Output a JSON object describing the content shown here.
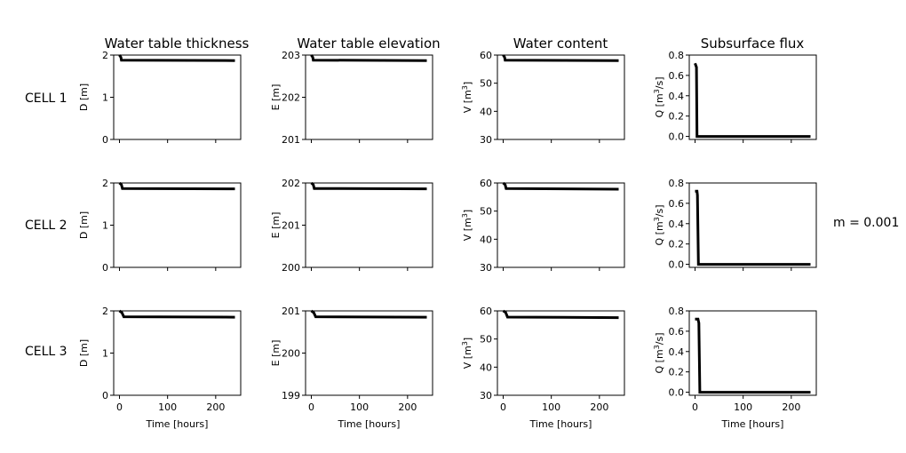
{
  "annotation": "m = 0.001",
  "column_titles": [
    "Water table thickness",
    "Water table elevation",
    "Water content",
    "Subsurface flux"
  ],
  "row_labels": [
    "CELL 1",
    "CELL 2",
    "CELL 3"
  ],
  "x_axis_label": "Time [hours]",
  "line_color": "#000000",
  "chart_data": [
    {
      "type": "line",
      "row": 0,
      "col": 0,
      "ylabel": "D [m]",
      "xlim": [
        -12,
        252
      ],
      "xticks": [
        0,
        100,
        200
      ],
      "ylim": [
        0,
        2
      ],
      "yticks": [
        0,
        1,
        2
      ],
      "ytick_labels": [
        "0",
        "1",
        "2"
      ],
      "show_xtick_labels": false,
      "xlabel": "",
      "series": [
        {
          "x": [
            0,
            3,
            4,
            240
          ],
          "y": [
            2.0,
            1.95,
            1.88,
            1.87
          ]
        }
      ]
    },
    {
      "type": "line",
      "row": 0,
      "col": 1,
      "ylabel": "E [m]",
      "xlim": [
        -12,
        252
      ],
      "xticks": [
        0,
        100,
        200
      ],
      "ylim": [
        201,
        203
      ],
      "yticks": [
        201,
        202,
        203
      ],
      "ytick_labels": [
        "201",
        "202",
        "203"
      ],
      "show_xtick_labels": false,
      "xlabel": "",
      "series": [
        {
          "x": [
            0,
            3,
            4,
            240
          ],
          "y": [
            203.0,
            202.95,
            202.88,
            202.87
          ]
        }
      ]
    },
    {
      "type": "line",
      "row": 0,
      "col": 2,
      "ylabel": "V [m³]",
      "xlim": [
        -12,
        252
      ],
      "xticks": [
        0,
        100,
        200
      ],
      "ylim": [
        30,
        60
      ],
      "yticks": [
        30,
        40,
        50,
        60
      ],
      "ytick_labels": [
        "30",
        "40",
        "50",
        "60"
      ],
      "show_xtick_labels": false,
      "xlabel": "",
      "series": [
        {
          "x": [
            0,
            3,
            4,
            240
          ],
          "y": [
            60,
            59.2,
            58.2,
            58.0
          ]
        }
      ]
    },
    {
      "type": "line",
      "row": 0,
      "col": 3,
      "ylabel": "Q [m³/s]",
      "xlim": [
        -12,
        252
      ],
      "xticks": [
        0,
        100,
        200
      ],
      "ylim": [
        -0.03,
        0.8
      ],
      "yticks": [
        0,
        0.2,
        0.4,
        0.6,
        0.8
      ],
      "ytick_labels": [
        "0.0",
        "0.2",
        "0.4",
        "0.6",
        "0.8"
      ],
      "show_xtick_labels": false,
      "xlabel": "",
      "series": [
        {
          "x": [
            0,
            3,
            4,
            240
          ],
          "y": [
            0.72,
            0.68,
            0.0,
            0.0
          ]
        }
      ]
    },
    {
      "type": "line",
      "row": 1,
      "col": 0,
      "ylabel": "D [m]",
      "xlim": [
        -12,
        252
      ],
      "xticks": [
        0,
        100,
        200
      ],
      "ylim": [
        0,
        2
      ],
      "yticks": [
        0,
        1,
        2
      ],
      "ytick_labels": [
        "0",
        "1",
        "2"
      ],
      "show_xtick_labels": false,
      "xlabel": "",
      "series": [
        {
          "x": [
            0,
            4,
            6,
            240
          ],
          "y": [
            2.0,
            1.96,
            1.87,
            1.86
          ]
        }
      ]
    },
    {
      "type": "line",
      "row": 1,
      "col": 1,
      "ylabel": "E [m]",
      "xlim": [
        -12,
        252
      ],
      "xticks": [
        0,
        100,
        200
      ],
      "ylim": [
        200,
        202
      ],
      "yticks": [
        200,
        201,
        202
      ],
      "ytick_labels": [
        "200",
        "201",
        "202"
      ],
      "show_xtick_labels": false,
      "xlabel": "",
      "series": [
        {
          "x": [
            0,
            4,
            6,
            240
          ],
          "y": [
            202.0,
            201.96,
            201.87,
            201.86
          ]
        }
      ]
    },
    {
      "type": "line",
      "row": 1,
      "col": 2,
      "ylabel": "V [m³]",
      "xlim": [
        -12,
        252
      ],
      "xticks": [
        0,
        100,
        200
      ],
      "ylim": [
        30,
        60
      ],
      "yticks": [
        30,
        40,
        50,
        60
      ],
      "ytick_labels": [
        "30",
        "40",
        "50",
        "60"
      ],
      "show_xtick_labels": false,
      "xlabel": "",
      "series": [
        {
          "x": [
            0,
            4,
            6,
            240
          ],
          "y": [
            60,
            59.4,
            58.0,
            57.8
          ]
        }
      ]
    },
    {
      "type": "line",
      "row": 1,
      "col": 3,
      "ylabel": "Q [m³/s]",
      "xlim": [
        -12,
        252
      ],
      "xticks": [
        0,
        100,
        200
      ],
      "ylim": [
        -0.03,
        0.8
      ],
      "yticks": [
        0,
        0.2,
        0.4,
        0.6,
        0.8
      ],
      "ytick_labels": [
        "0.0",
        "0.2",
        "0.4",
        "0.6",
        "0.8"
      ],
      "show_xtick_labels": false,
      "xlabel": "",
      "series": [
        {
          "x": [
            0,
            4,
            5,
            7,
            240
          ],
          "y": [
            0.72,
            0.72,
            0.68,
            0.0,
            0.0
          ]
        }
      ]
    },
    {
      "type": "line",
      "row": 2,
      "col": 0,
      "ylabel": "D [m]",
      "xlim": [
        -12,
        252
      ],
      "xticks": [
        0,
        100,
        200
      ],
      "ylim": [
        0,
        2
      ],
      "yticks": [
        0,
        1,
        2
      ],
      "ytick_labels": [
        "0",
        "1",
        "2"
      ],
      "show_xtick_labels": true,
      "xlabel": "Time [hours]",
      "series": [
        {
          "x": [
            0,
            5,
            9,
            240
          ],
          "y": [
            2.0,
            1.96,
            1.86,
            1.85
          ]
        }
      ]
    },
    {
      "type": "line",
      "row": 2,
      "col": 1,
      "ylabel": "E [m]",
      "xlim": [
        -12,
        252
      ],
      "xticks": [
        0,
        100,
        200
      ],
      "ylim": [
        199,
        201
      ],
      "yticks": [
        199,
        200,
        201
      ],
      "ytick_labels": [
        "199",
        "200",
        "201"
      ],
      "show_xtick_labels": true,
      "xlabel": "Time [hours]",
      "series": [
        {
          "x": [
            0,
            5,
            9,
            240
          ],
          "y": [
            201.0,
            200.96,
            200.86,
            200.85
          ]
        }
      ]
    },
    {
      "type": "line",
      "row": 2,
      "col": 2,
      "ylabel": "V [m³]",
      "xlim": [
        -12,
        252
      ],
      "xticks": [
        0,
        100,
        200
      ],
      "ylim": [
        30,
        60
      ],
      "yticks": [
        30,
        40,
        50,
        60
      ],
      "ytick_labels": [
        "30",
        "40",
        "50",
        "60"
      ],
      "show_xtick_labels": true,
      "xlabel": "Time [hours]",
      "series": [
        {
          "x": [
            0,
            5,
            9,
            240
          ],
          "y": [
            60,
            59.5,
            57.8,
            57.6
          ]
        }
      ]
    },
    {
      "type": "line",
      "row": 2,
      "col": 3,
      "ylabel": "Q [m³/s]",
      "xlim": [
        -12,
        252
      ],
      "xticks": [
        0,
        100,
        200
      ],
      "ylim": [
        -0.03,
        0.8
      ],
      "yticks": [
        0,
        0.2,
        0.4,
        0.6,
        0.8
      ],
      "ytick_labels": [
        "0.0",
        "0.2",
        "0.4",
        "0.6",
        "0.8"
      ],
      "show_xtick_labels": true,
      "xlabel": "Time [hours]",
      "series": [
        {
          "x": [
            0,
            6,
            8,
            10,
            240
          ],
          "y": [
            0.72,
            0.72,
            0.68,
            0.0,
            0.0
          ]
        }
      ]
    }
  ]
}
